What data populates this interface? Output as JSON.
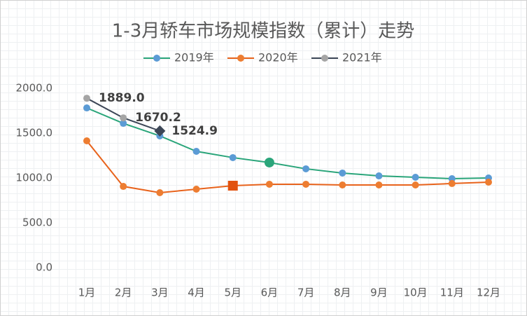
{
  "chart_data": {
    "type": "line",
    "title": "1-3月轿车市场规模指数（累计）走势",
    "categories": [
      "1月",
      "2月",
      "3月",
      "4月",
      "5月",
      "6月",
      "7月",
      "8月",
      "9月",
      "10月",
      "11月",
      "12月"
    ],
    "series": [
      {
        "name": "2019年",
        "color": "#2aa57a",
        "marker_color": "#5b9bd5",
        "highlight": {
          "index": 5,
          "shape": "circle",
          "color": "#2aa57a"
        },
        "values": [
          1781,
          1609,
          1469,
          1297,
          1227,
          1172,
          1102,
          1055,
          1023,
          1008,
          992,
          1000
        ]
      },
      {
        "name": "2020年",
        "color": "#e8631c",
        "marker_color": "#ed7d31",
        "highlight": {
          "index": 4,
          "shape": "square",
          "color": "#e2520f"
        },
        "values": [
          1414,
          906,
          836,
          875,
          914,
          930,
          930,
          922,
          922,
          922,
          938,
          953
        ]
      },
      {
        "name": "2021年",
        "color": "#3c4656",
        "marker_color": "#a5a5a5",
        "highlight": {
          "index": 2,
          "shape": "diamond",
          "color": "#3c4656"
        },
        "values": [
          1889.0,
          1670.2,
          1524.9,
          null,
          null,
          null,
          null,
          null,
          null,
          null,
          null,
          null
        ],
        "value_labels": [
          "1889.0",
          "1670.2",
          "1524.9",
          null,
          null,
          null,
          null,
          null,
          null,
          null,
          null,
          null
        ]
      }
    ],
    "ylim": [
      0,
      2000
    ],
    "yticks": [
      {
        "value": 0,
        "label": "0.0"
      },
      {
        "value": 500,
        "label": "500.0"
      },
      {
        "value": 1000,
        "label": "1000.0"
      },
      {
        "value": 1500,
        "label": "1500.0"
      },
      {
        "value": 2000,
        "label": "2000.0"
      }
    ],
    "grid": false,
    "legend": "top"
  }
}
